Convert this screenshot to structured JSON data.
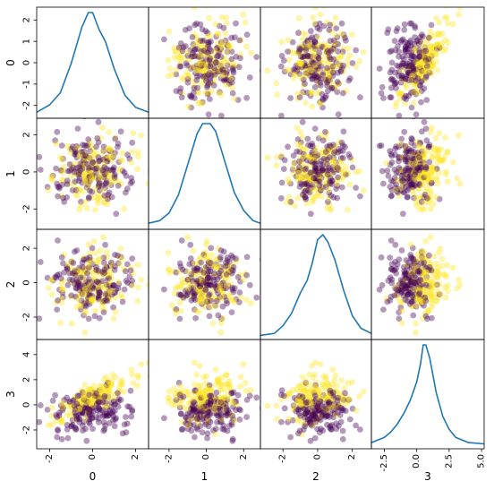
{
  "chart_data": {
    "type": "scatter_matrix",
    "variables": [
      "0",
      "1",
      "2",
      "3"
    ],
    "diagonal": "kde",
    "point_alpha": 0.4,
    "colormap": "viridis",
    "class_colors": {
      "class_0": "#440154",
      "class_1": "#fde725"
    },
    "kde_color": "#1f77b4",
    "ranges": [
      [
        -2.6,
        2.6
      ],
      [
        -3.1,
        2.9
      ],
      [
        -3.3,
        3.1
      ],
      [
        -3.5,
        5.2
      ]
    ],
    "ticks": [
      [
        -2,
        -1,
        0,
        1,
        2
      ],
      [
        -2,
        0,
        2
      ],
      [
        -2,
        0,
        2
      ],
      [
        -2,
        0,
        2,
        4
      ]
    ],
    "ticklabels": [
      [
        "-2",
        "-1",
        "0",
        "1",
        "2"
      ],
      [
        "-2",
        "0",
        "2"
      ],
      [
        "-2",
        "0",
        "2"
      ],
      [
        "-2",
        "0",
        "2",
        "4"
      ]
    ],
    "bottom_ticks": [
      [
        -2,
        0,
        2
      ],
      [
        -2,
        0,
        2
      ],
      [
        -2,
        0,
        2
      ],
      [
        -2.5,
        0,
        2.5,
        5
      ]
    ],
    "bottom_ticklabels": [
      [
        "-2",
        "0",
        "2"
      ],
      [
        "-2",
        "0",
        "2"
      ],
      [
        "-2",
        "0",
        "2"
      ],
      [
        "-2.5",
        "0.0",
        "2.5",
        "5.0"
      ]
    ],
    "kde_curves": [
      {
        "x": [
          -2.6,
          -2.0,
          -1.5,
          -1.0,
          -0.5,
          -0.2,
          0.0,
          0.3,
          0.6,
          1.0,
          1.5,
          2.0,
          2.6
        ],
        "density": [
          0.01,
          0.04,
          0.09,
          0.21,
          0.36,
          0.42,
          0.42,
          0.35,
          0.3,
          0.19,
          0.08,
          0.03,
          0.01
        ]
      },
      {
        "x": [
          -3.1,
          -2.5,
          -2.0,
          -1.5,
          -1.0,
          -0.5,
          -0.2,
          0.2,
          0.5,
          1.0,
          1.5,
          2.0,
          2.5,
          2.9
        ],
        "density": [
          0.01,
          0.02,
          0.05,
          0.12,
          0.24,
          0.36,
          0.4,
          0.4,
          0.37,
          0.25,
          0.13,
          0.06,
          0.02,
          0.01
        ]
      },
      {
        "x": [
          -3.3,
          -2.5,
          -2.0,
          -1.5,
          -1.0,
          -0.6,
          -0.3,
          0.0,
          0.3,
          0.6,
          1.0,
          1.5,
          2.0,
          2.5,
          3.1
        ],
        "density": [
          0.002,
          0.01,
          0.04,
          0.09,
          0.17,
          0.22,
          0.29,
          0.38,
          0.4,
          0.37,
          0.3,
          0.18,
          0.08,
          0.03,
          0.01
        ]
      },
      {
        "x": [
          -3.5,
          -2.5,
          -2.0,
          -1.5,
          -1.0,
          -0.5,
          0.0,
          0.3,
          0.5,
          0.7,
          1.0,
          1.5,
          2.0,
          2.5,
          3.0,
          4.0,
          5.2
        ],
        "density": [
          0.01,
          0.03,
          0.05,
          0.08,
          0.12,
          0.17,
          0.24,
          0.31,
          0.38,
          0.38,
          0.33,
          0.2,
          0.11,
          0.06,
          0.03,
          0.01,
          0.005
        ]
      }
    ]
  }
}
